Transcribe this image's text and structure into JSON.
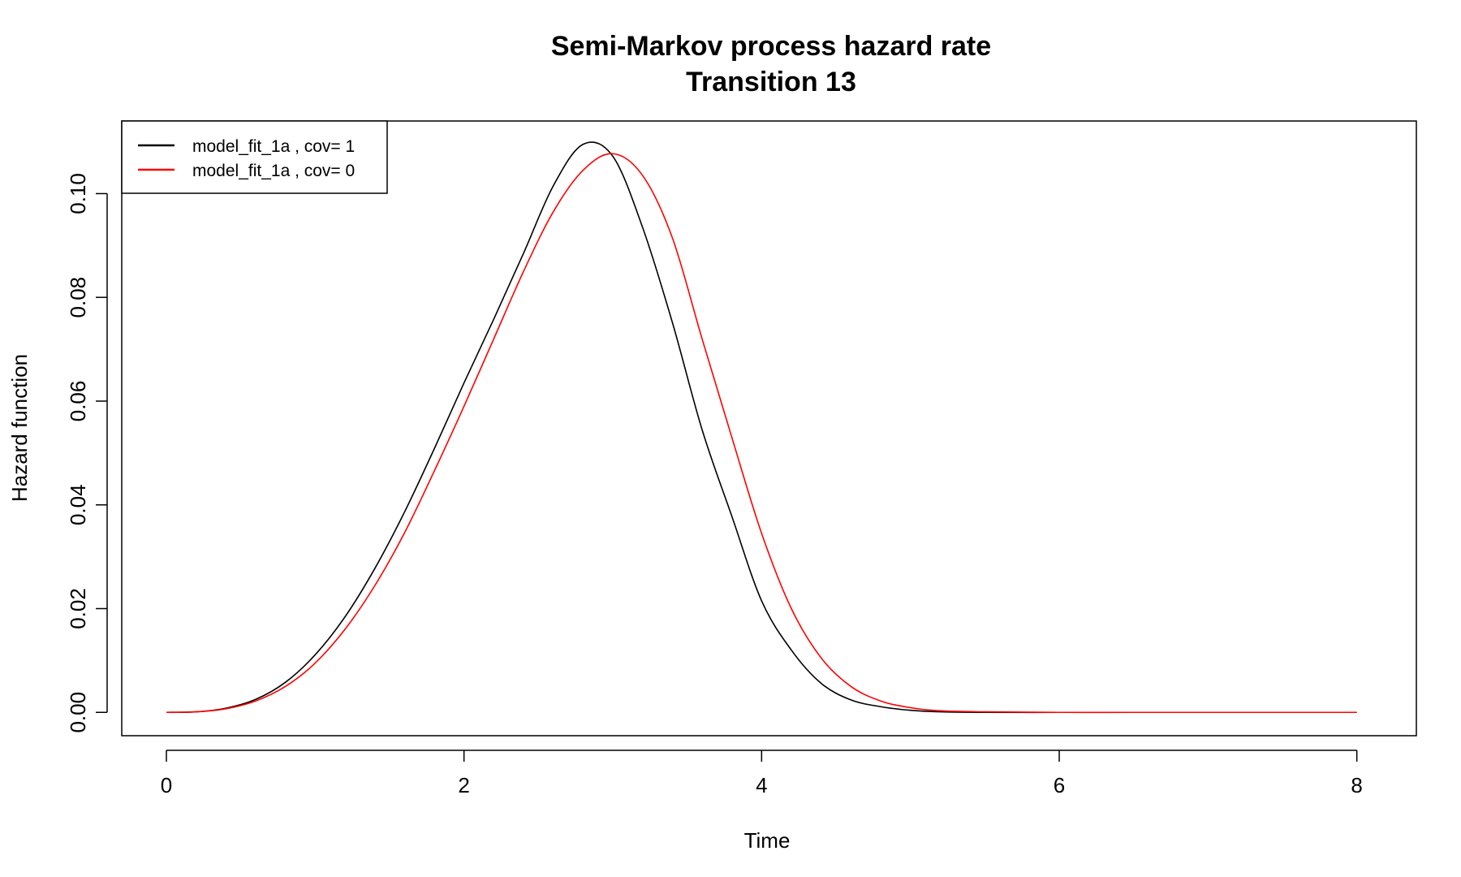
{
  "chart_data": {
    "type": "line",
    "title": "Semi-Markov process hazard rate",
    "subtitle": "Transition 13",
    "xlabel": "Time",
    "ylabel": "Hazard function",
    "xlim": [
      -0.3,
      8.4
    ],
    "ylim": [
      -0.0045,
      0.114
    ],
    "xticks": [
      0,
      2,
      4,
      6,
      8
    ],
    "xtick_labels": [
      "0",
      "2",
      "4",
      "6",
      "8"
    ],
    "yticks": [
      0,
      0.02,
      0.04,
      0.06,
      0.08,
      0.1
    ],
    "ytick_labels": [
      "0.00",
      "0.02",
      "0.04",
      "0.06",
      "0.08",
      "0.10"
    ],
    "grid": false,
    "legend_position": "top-left",
    "series": [
      {
        "name": "model_fit_1a , cov= 1",
        "color": "#000000",
        "x": [
          0,
          0.2,
          0.4,
          0.6,
          0.8,
          1.0,
          1.2,
          1.4,
          1.6,
          1.8,
          2.0,
          2.2,
          2.4,
          2.6,
          2.8,
          3.0,
          3.2,
          3.4,
          3.6,
          3.8,
          4.0,
          4.2,
          4.4,
          4.6,
          4.8,
          5.0,
          5.2,
          5.5,
          6.0,
          6.5,
          7.0,
          7.5,
          8.0
        ],
        "y": [
          0,
          0.0001,
          0.0008,
          0.0025,
          0.0058,
          0.0111,
          0.0184,
          0.0277,
          0.0386,
          0.0508,
          0.0635,
          0.0758,
          0.0885,
          0.1015,
          0.1095,
          0.1072,
          0.0935,
          0.0752,
          0.0545,
          0.0378,
          0.0215,
          0.012,
          0.0056,
          0.0024,
          0.0011,
          0.0004,
          0.0001,
          0.0,
          0.0,
          0.0,
          0.0,
          0.0,
          0.0
        ]
      },
      {
        "name": "model_fit_1a , cov= 0",
        "color": "#ff0000",
        "x": [
          0,
          0.2,
          0.4,
          0.6,
          0.8,
          1.0,
          1.2,
          1.4,
          1.6,
          1.8,
          2.0,
          2.2,
          2.4,
          2.6,
          2.8,
          3.0,
          3.2,
          3.4,
          3.6,
          3.8,
          4.0,
          4.2,
          4.4,
          4.6,
          4.8,
          5.0,
          5.2,
          5.5,
          6.0,
          6.5,
          7.0,
          7.5,
          8.0
        ],
        "y": [
          0,
          0.0001,
          0.0007,
          0.0022,
          0.005,
          0.0095,
          0.016,
          0.0244,
          0.0346,
          0.0465,
          0.059,
          0.072,
          0.085,
          0.0965,
          0.1045,
          0.1077,
          0.1035,
          0.0915,
          0.072,
          0.053,
          0.0345,
          0.02,
          0.0105,
          0.005,
          0.0022,
          0.0009,
          0.0003,
          0.0001,
          0.0,
          0.0,
          0.0,
          0.0,
          0.0
        ]
      }
    ]
  }
}
